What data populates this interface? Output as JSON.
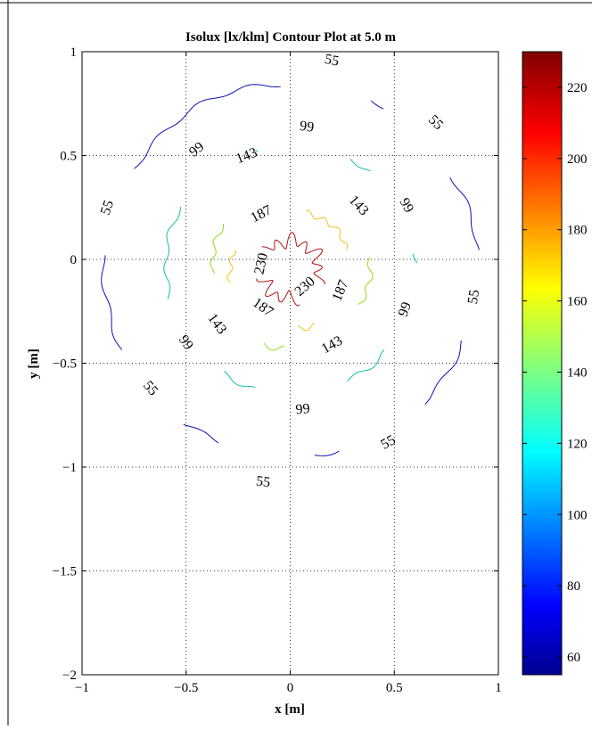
{
  "chart_data": {
    "type": "contour",
    "title": "Isolux [lx/klm] Contour Plot at 5.0 m",
    "xlabel": "x [m]",
    "ylabel": "y [m]",
    "xlim": [
      -1,
      1
    ],
    "ylim": [
      -2,
      1
    ],
    "xticks": [
      -1,
      -0.5,
      0,
      0.5,
      1
    ],
    "xtick_labels": [
      "−1",
      "−0.5",
      "0",
      "0.5",
      "1"
    ],
    "yticks": [
      -2,
      -1.5,
      -1,
      -0.5,
      0,
      0.5,
      1
    ],
    "ytick_labels": [
      "−2",
      "−1.5",
      "−1",
      "−0.5",
      "0",
      "0.5",
      "1"
    ],
    "grid": true,
    "center": [
      0,
      -0.05
    ],
    "levels": [
      {
        "value": 55,
        "label": "55",
        "color": "#1010b4",
        "radius": 0.9,
        "labels_at": [
          [
            0.2,
            0.96
          ],
          [
            0.7,
            0.66
          ],
          [
            -0.88,
            0.25
          ],
          [
            0.88,
            -0.18
          ],
          [
            -0.67,
            -0.62
          ],
          [
            0.47,
            -0.88
          ],
          [
            -0.13,
            -1.07
          ]
        ]
      },
      {
        "value": 99,
        "label": "99",
        "color": "#11c0a2",
        "radius": 0.6,
        "labels_at": [
          [
            0.08,
            0.64
          ],
          [
            -0.45,
            0.53
          ],
          [
            0.56,
            0.26
          ],
          [
            0.55,
            -0.24
          ],
          [
            -0.5,
            -0.4
          ],
          [
            0.06,
            -0.72
          ]
        ]
      },
      {
        "value": 143,
        "label": "143",
        "color": "#90dd14",
        "radius": 0.38,
        "labels_at": [
          [
            -0.21,
            0.5
          ],
          [
            0.33,
            0.26
          ],
          [
            -0.35,
            -0.31
          ],
          [
            0.2,
            -0.41
          ]
        ]
      },
      {
        "value": 187,
        "label": "187",
        "color": "#f0c414",
        "radius": 0.29,
        "labels_at": [
          [
            -0.14,
            0.22
          ],
          [
            0.24,
            -0.15
          ],
          [
            -0.13,
            -0.23
          ]
        ]
      },
      {
        "value": 230,
        "label": "230",
        "color": "#b41010",
        "radius": 0.14,
        "labels_at": [
          [
            -0.14,
            -0.02
          ],
          [
            0.07,
            -0.13
          ]
        ]
      }
    ],
    "colorbar": {
      "range": [
        55,
        230
      ],
      "ticks": [
        60,
        80,
        100,
        120,
        140,
        160,
        180,
        200,
        220
      ],
      "tick_labels": [
        "60",
        "80",
        "100",
        "120",
        "140",
        "160",
        "180",
        "200",
        "220"
      ],
      "colormap": "jet"
    }
  }
}
